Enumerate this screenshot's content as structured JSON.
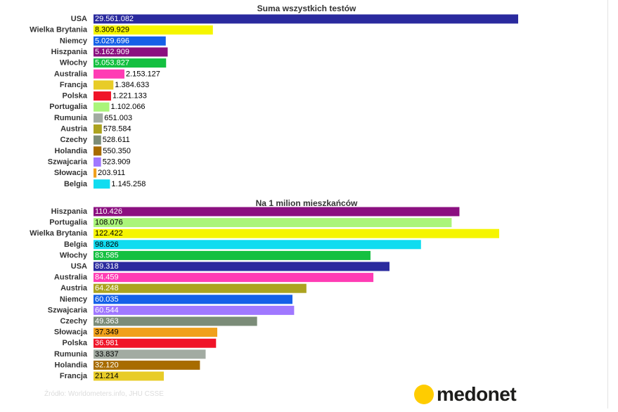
{
  "chart_data": [
    {
      "type": "bar",
      "orientation": "horizontal",
      "title": "Suma wszystkich testów",
      "categories": [
        "USA",
        "Wielka Brytania",
        "Niemcy",
        "Hiszpania",
        "Włochy",
        "Australia",
        "Francja",
        "Polska",
        "Portugalia",
        "Rumunia",
        "Austria",
        "Czechy",
        "Holandia",
        "Szwajcaria",
        "Słowacja",
        "Belgia"
      ],
      "values": [
        29561082,
        8309929,
        5029696,
        5162909,
        5053827,
        2153127,
        1384633,
        1221133,
        1102066,
        651003,
        578584,
        528611,
        550350,
        523909,
        203911,
        1145258
      ],
      "value_labels": [
        "29.561.082",
        "8.309.929",
        "5.029.696",
        "5.162.909",
        "5.053.827",
        "2.153.127",
        "1.384.633",
        "1.221.133",
        "1.102.066",
        "651.003",
        "578.584",
        "528.611",
        "550.350",
        "523.909",
        "203.911",
        "1.145.258"
      ],
      "colors": [
        "#2a2a9e",
        "#f5f500",
        "#1560e8",
        "#8b1080",
        "#14c040",
        "#ff3cb4",
        "#e8cc28",
        "#f01428",
        "#aaf57a",
        "#a2aba2",
        "#aca320",
        "#7b8c78",
        "#a86c00",
        "#a078ff",
        "#f0a01c",
        "#10dcf0"
      ],
      "xlim": [
        0,
        29561082
      ],
      "grid": false,
      "legend": "none"
    },
    {
      "type": "bar",
      "orientation": "horizontal",
      "title": "Na 1 milion mieszkańców",
      "categories": [
        "Hiszpania",
        "Portugalia",
        "Wielka Brytania",
        "Belgia",
        "Włochy",
        "USA",
        "Australia",
        "Austria",
        "Niemcy",
        "Szwajcaria",
        "Czechy",
        "Słowacja",
        "Polska",
        "Rumunia",
        "Holandia",
        "Francja"
      ],
      "values": [
        110426,
        108076,
        122422,
        98826,
        83585,
        89318,
        84459,
        64248,
        60035,
        60544,
        49363,
        37349,
        36981,
        33837,
        32120,
        21214
      ],
      "value_labels": [
        "110.426",
        "108.076",
        "122.422",
        "98.826",
        "83.585",
        "89.318",
        "84.459",
        "64.248",
        "60.035",
        "60.544",
        "49.363",
        "37.349",
        "36.981",
        "33.837",
        "32.120",
        "21.214"
      ],
      "colors": [
        "#8b1080",
        "#aaf57a",
        "#f5f500",
        "#10dcf0",
        "#14c040",
        "#2a2a9e",
        "#ff3cb4",
        "#aca320",
        "#1560e8",
        "#a078ff",
        "#7b8c78",
        "#f0a01c",
        "#f01428",
        "#a2aba2",
        "#a86c00",
        "#e8cc28"
      ],
      "xlim": [
        0,
        122422
      ],
      "grid": false,
      "legend": "none"
    }
  ],
  "footer": {
    "source": "Źródło: Worldometers.info, JHU CSSE",
    "brand": "medonet"
  }
}
